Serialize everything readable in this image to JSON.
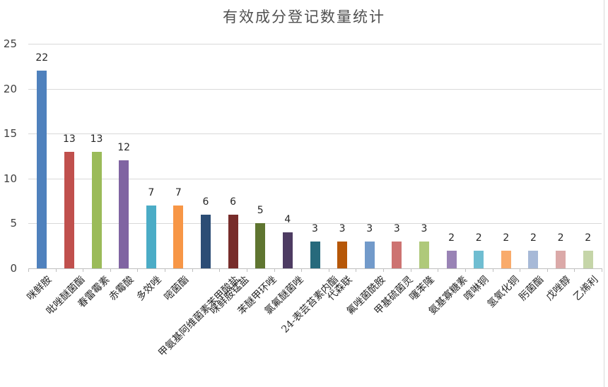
{
  "chart_data": {
    "type": "bar",
    "title": "有效成分登记数量统计",
    "xlabel": "",
    "ylabel": "",
    "ylim": [
      0,
      25
    ],
    "yticks": [
      0,
      5,
      10,
      15,
      20,
      25
    ],
    "grid": true,
    "legend": "none",
    "data_labels": true,
    "categories": [
      "咪鲜胺",
      "吡唑醚菌酯",
      "春雷霉素",
      "赤霉酸",
      "多效唑",
      "嘧菌酯",
      "甲氨基阿维菌素苯甲酸盐",
      "咪鲜胺锰盐",
      "苯醚甲环唑",
      "氯氟醚菌唑",
      "24-表芸苔素内酯",
      "代森联",
      "氟唑菌酰胺",
      "甲基硫菌灵",
      "噻苯隆",
      "氨基寡糖素",
      "喹啉铜",
      "氢氧化铜",
      "肟菌酯",
      "戊唑醇",
      "乙烯利"
    ],
    "values": [
      22,
      13,
      13,
      12,
      7,
      7,
      6,
      6,
      5,
      4,
      3,
      3,
      3,
      3,
      3,
      2,
      2,
      2,
      2,
      2,
      2
    ],
    "colors": [
      "#4f81bd",
      "#c0504d",
      "#9bbb59",
      "#8064a2",
      "#4bacc6",
      "#f79646",
      "#2c4d75",
      "#772c2a",
      "#5f7530",
      "#4d3b62",
      "#276a7c",
      "#b65708",
      "#729aca",
      "#cd7371",
      "#afc97a",
      "#9983b5",
      "#6fbdd1",
      "#f9ab6b",
      "#a7b9d7",
      "#dba9a8",
      "#c5d5a8"
    ]
  },
  "colors": {
    "grid": "#d9d9d9",
    "axis": "#bfbfbf",
    "title": "#505050",
    "text": "#262626"
  }
}
